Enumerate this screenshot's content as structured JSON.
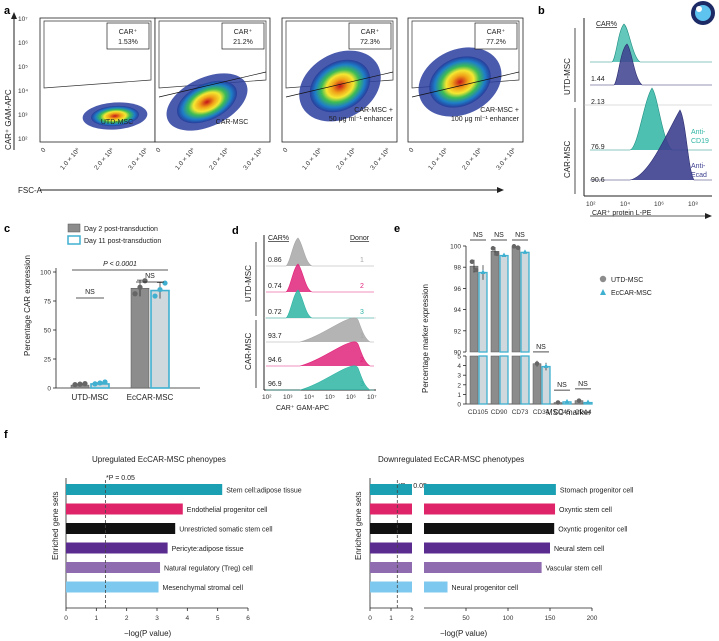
{
  "panel_labels": {
    "a": "a",
    "b": "b",
    "c": "c",
    "d": "d",
    "e": "e",
    "f": "f"
  },
  "panel_a": {
    "y_label": "CAR⁺ GAM-APC",
    "x_label": "FSC-A",
    "y_ticks": [
      "10⁷",
      "10⁶",
      "10⁵",
      "10⁴",
      "10³",
      "10²"
    ],
    "x_ticks": [
      "0",
      "1.0 × 10⁶",
      "2.0 × 10⁶",
      "3.0 × 10⁶"
    ],
    "plots": [
      {
        "gate_label": "CAR⁺",
        "gate_value": "1.53%",
        "name": "UTD-MSC"
      },
      {
        "gate_label": "CAR⁺",
        "gate_value": "21.2%",
        "name": "CAR-MSC"
      },
      {
        "gate_label": "CAR⁺",
        "gate_value": "72.3%",
        "name": "CAR-MSC +",
        "name2": "50 μg ml⁻¹ enhancer"
      },
      {
        "gate_label": "CAR⁺",
        "gate_value": "77.2%",
        "name": "CAR-MSC +",
        "name2": "100 μg ml⁻¹ enhancer"
      }
    ]
  },
  "panel_b": {
    "header": "CAR%",
    "groups": [
      "UTD-MSC",
      "CAR-MSC"
    ],
    "values": [
      "1.44",
      "2.13",
      "76.9",
      "90.6"
    ],
    "legend": [
      "Anti-",
      "CD19",
      "Anti-",
      "Ecad"
    ],
    "x_ticks": [
      "10²",
      "10⁴",
      "10⁶",
      "10⁸"
    ],
    "x_label": "CAR⁺ protein L-PE",
    "colors": {
      "cd19": "#2fb5a4",
      "ecad": "#3d3f8f"
    }
  },
  "panel_c": {
    "legend": [
      "Day 2 post-transduction",
      "Day 11 post-transduction"
    ],
    "y_label": "Percentage CAR expression",
    "y_ticks": [
      "0",
      "25",
      "50",
      "75",
      "100"
    ],
    "categories": [
      "UTD-MSC",
      "EcCAR-MSC"
    ],
    "annotations": [
      "P < 0.0001",
      "NS",
      "NS"
    ],
    "colors": {
      "day2": "#8c8c8c",
      "day11": "#3fb0d0"
    }
  },
  "panel_d": {
    "header_left": "CAR%",
    "header_right": "Donor",
    "groups": [
      "UTD-MSC",
      "CAR-MSC"
    ],
    "values": [
      "0.86",
      "0.74",
      "0.72",
      "93.7",
      "94.6",
      "96.9"
    ],
    "donors": [
      "1",
      "2",
      "3",
      "1",
      "2",
      "3"
    ],
    "x_ticks": [
      "10²",
      "10³",
      "10⁴",
      "10⁵",
      "10⁶",
      "10⁷"
    ],
    "x_label": "CAR⁺ GAM-APC",
    "colors": {
      "d1": "#a7a7a7",
      "d2": "#e0237a",
      "d3": "#2fb5a4"
    }
  },
  "panel_e": {
    "y_label": "Percentage marker expression",
    "x_label": "MSC marker",
    "categories": [
      "CD105",
      "CD90",
      "CD73",
      "CD34",
      "CD45",
      "CD14"
    ],
    "upper_ticks": [
      "100",
      "98",
      "96",
      "94",
      "92",
      "90"
    ],
    "lower_ticks": [
      "5",
      "4",
      "3",
      "2",
      "1",
      "0"
    ],
    "ns_labels": [
      "NS",
      "NS",
      "NS",
      "NS",
      "NS",
      "NS"
    ],
    "legend": [
      "UTD-MSC",
      "EcCAR-MSC"
    ]
  },
  "panel_f": {
    "left": {
      "title": "Upregulated EcCAR-MSC phenoypes",
      "threshold": "*P = 0.05",
      "y_label": "Enriched gene sets",
      "x_label": "−log(P value)",
      "x_ticks": [
        "0",
        "1",
        "2",
        "3",
        "4",
        "5",
        "6"
      ],
      "bars": [
        {
          "label": "Stem cell:adipose tissue",
          "color": "#1aa0b2"
        },
        {
          "label": "Endothelial progenitor cell",
          "color": "#e0246a"
        },
        {
          "label": "Unrestricted somatic stem cell",
          "color": "#111111"
        },
        {
          "label": "Pericyte:adipose tissue",
          "color": "#5b2c8f"
        },
        {
          "label": "Natural regulatory (Treg) cell",
          "color": "#8f6bb0"
        },
        {
          "label": "Mesenchymal stromal cell",
          "color": "#7cc8ee"
        }
      ]
    },
    "right": {
      "title": "Downregulated EcCAR-MSC phenotypes",
      "threshold": "*P = 0.05",
      "y_label": "Enriched gene sets",
      "x_label": "−log(P value)",
      "x_ticks": [
        "0",
        "1",
        "2",
        "50",
        "100",
        "150",
        "200"
      ],
      "bars": [
        {
          "label": "Stomach progenitor cell",
          "color": "#1aa0b2"
        },
        {
          "label": "Oxyntic stem cell",
          "color": "#e0246a"
        },
        {
          "label": "Oxyntic progenitor cell",
          "color": "#111111"
        },
        {
          "label": "Neural stem cell",
          "color": "#5b2c8f"
        },
        {
          "label": "Vascular stem cell",
          "color": "#8f6bb0"
        },
        {
          "label": "Neural progenitor cell",
          "color": "#7cc8ee"
        }
      ]
    }
  },
  "chart_data": [
    {
      "id": "c",
      "type": "bar",
      "title": "",
      "categories": [
        "UTD-MSC",
        "EcCAR-MSC"
      ],
      "series": [
        {
          "name": "Day 2 post-transduction",
          "values": [
            2.5,
            86
          ]
        },
        {
          "name": "Day 11 post-transduction",
          "values": [
            3.5,
            84
          ]
        }
      ],
      "errors": [
        [
          0.5,
          7
        ],
        [
          1,
          7
        ]
      ],
      "ylabel": "Percentage CAR expression",
      "ylim": [
        0,
        100
      ]
    },
    {
      "id": "e",
      "type": "bar",
      "categories": [
        "CD105",
        "CD90",
        "CD73",
        "CD34",
        "CD45",
        "CD14"
      ],
      "series": [
        {
          "name": "UTD-MSC",
          "values": [
            98.1,
            99.5,
            99.9,
            4.2,
            0.15,
            0.35
          ]
        },
        {
          "name": "EcCAR-MSC",
          "values": [
            97.5,
            99.1,
            99.4,
            3.9,
            0.22,
            0.15
          ]
        }
      ],
      "errors": [
        [
          0.6,
          0.4,
          0.1,
          0.3,
          0.05,
          0.1
        ],
        [
          0.7,
          0.1,
          0.1,
          0.4,
          0.08,
          0.05
        ]
      ],
      "ylabel": "Percentage marker expression",
      "xlabel": "MSC marker",
      "ylim_upper": [
        90,
        100
      ],
      "ylim_lower": [
        0,
        5
      ]
    },
    {
      "id": "f-left",
      "type": "bar",
      "orientation": "horizontal",
      "title": "Upregulated EcCAR-MSC phenoypes",
      "categories": [
        "Stem cell:adipose tissue",
        "Endothelial progenitor cell",
        "Unrestricted somatic stem cell",
        "Pericyte:adipose tissue",
        "Natural regulatory (Treg) cell",
        "Mesenchymal stromal cell"
      ],
      "values": [
        5.15,
        3.85,
        3.6,
        3.35,
        3.1,
        3.05
      ],
      "xlabel": "−log(P value)",
      "xlim": [
        0,
        6
      ],
      "threshold": 1.3
    },
    {
      "id": "f-right",
      "type": "bar",
      "orientation": "horizontal",
      "title": "Downregulated EcCAR-MSC phenotypes",
      "categories": [
        "Stomach progenitor cell",
        "Oxyntic stem cell",
        "Oxyntic progenitor cell",
        "Neural stem cell",
        "Vascular stem cell",
        "Neural progenitor cell"
      ],
      "values": [
        157,
        156,
        155,
        150,
        140,
        28
      ],
      "xlabel": "−log(P value)",
      "xlim": [
        0,
        200
      ],
      "threshold": 1.3
    }
  ]
}
